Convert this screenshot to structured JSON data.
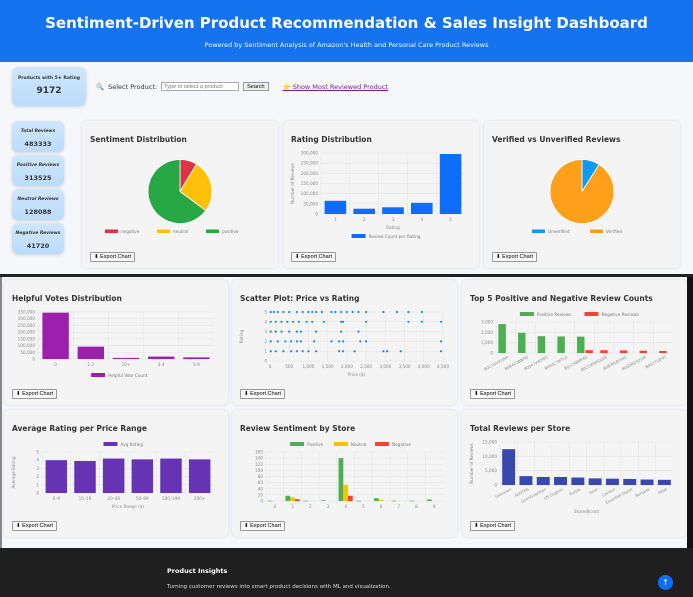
{
  "header": {
    "title": "Sentiment-Driven Product Recommendation & Sales Insight Dashboard",
    "subtitle": "Powered by Sentiment Analysis of Amazon's Health and Personal Care Product Reviews"
  },
  "top_stat": {
    "label": "Products with 5★ Rating",
    "value": "9172"
  },
  "search": {
    "label": "Select Product:",
    "placeholder": "Type or select a product",
    "button": "Search",
    "link": "Show Most Reviewed Product",
    "icon": "magnifier-icon",
    "link_icon": "star-icon"
  },
  "stats": [
    {
      "label": "Total Reviews",
      "value": "483333"
    },
    {
      "label": "Positive Reviews",
      "value": "313525"
    },
    {
      "label": "Neutral Reviews",
      "value": "128088"
    },
    {
      "label": "Negative Reviews",
      "value": "41720"
    }
  ],
  "export_label": "⬇ Export Chart",
  "footer": {
    "title": "Product Insights",
    "text": "Turning customer reviews into smart product decisions with ML and visualization.",
    "scroll_top": "↑"
  },
  "chart_data": [
    {
      "id": "sentiment",
      "type": "pie",
      "title": "Sentiment Distribution",
      "categories": [
        "negative",
        "neutral",
        "positive"
      ],
      "values": [
        41720,
        128088,
        313525
      ],
      "colors": [
        "#dc3545",
        "#ffc107",
        "#28a745"
      ],
      "legend": "bottom"
    },
    {
      "id": "rating",
      "type": "bar",
      "title": "Rating Distribution",
      "categories": [
        "1",
        "2",
        "3",
        "4",
        "5"
      ],
      "series": [
        {
          "name": "Review Count per Rating",
          "values": [
            65000,
            26000,
            33000,
            55000,
            295000
          ],
          "color": "#0d6efd"
        }
      ],
      "xlabel": "Rating",
      "ylabel": "Number of Reviews",
      "ylim": [
        0,
        300000
      ],
      "yticks": [
        0,
        50000,
        100000,
        150000,
        200000,
        250000,
        300000
      ],
      "legend": "bottom",
      "grid": true
    },
    {
      "id": "verified",
      "type": "pie",
      "title": "Verified vs Unverified Reviews",
      "categories": [
        "Unverified",
        "Verified"
      ],
      "values": [
        9,
        91
      ],
      "colors": [
        "#0d9af0",
        "#ff9f1a"
      ],
      "legend": "bottom"
    },
    {
      "id": "helpful",
      "type": "bar",
      "title": "Helpful Votes Distribution",
      "categories": [
        "0",
        "1-2",
        "10+",
        "3-4",
        "5-9"
      ],
      "series": [
        {
          "name": "Helpful Vote Count",
          "values": [
            345000,
            92000,
            8000,
            18000,
            12000
          ],
          "color": "#9c1fae"
        }
      ],
      "xlabel": "",
      "ylabel": "",
      "ylim": [
        0,
        350000
      ],
      "yticks": [
        0,
        50000,
        100000,
        150000,
        200000,
        250000,
        300000,
        350000
      ],
      "legend": "bottom",
      "grid": true
    },
    {
      "id": "scatter",
      "type": "scatter",
      "title": "Scatter Plot: Price vs Rating",
      "xlabel": "Price ($)",
      "ylabel": "Rating",
      "xlim": [
        0,
        4500
      ],
      "ylim": [
        0,
        5
      ],
      "xticks": [
        0,
        500,
        1000,
        1500,
        2000,
        2500,
        3000,
        3500,
        4000,
        4500
      ],
      "yticks": [
        0,
        1,
        2,
        3,
        4,
        5
      ],
      "color": "#1e88e5",
      "grid": true,
      "points": [
        [
          20,
          5
        ],
        [
          100,
          5
        ],
        [
          200,
          5
        ],
        [
          350,
          5
        ],
        [
          500,
          5
        ],
        [
          700,
          5
        ],
        [
          850,
          5
        ],
        [
          1000,
          5
        ],
        [
          1100,
          5
        ],
        [
          1200,
          5
        ],
        [
          1350,
          5
        ],
        [
          1600,
          5
        ],
        [
          1700,
          5
        ],
        [
          1850,
          5
        ],
        [
          2000,
          5
        ],
        [
          2150,
          5
        ],
        [
          2300,
          5
        ],
        [
          2500,
          5
        ],
        [
          2950,
          5
        ],
        [
          3300,
          5
        ],
        [
          3600,
          5
        ],
        [
          3950,
          5
        ],
        [
          20,
          4
        ],
        [
          150,
          4
        ],
        [
          300,
          4
        ],
        [
          450,
          4
        ],
        [
          600,
          4
        ],
        [
          750,
          4
        ],
        [
          950,
          4
        ],
        [
          1100,
          4
        ],
        [
          1400,
          4
        ],
        [
          1850,
          4
        ],
        [
          1900,
          4
        ],
        [
          2500,
          4
        ],
        [
          3600,
          4
        ],
        [
          3950,
          4
        ],
        [
          4450,
          4
        ],
        [
          20,
          3
        ],
        [
          150,
          3
        ],
        [
          300,
          3
        ],
        [
          500,
          3
        ],
        [
          700,
          3
        ],
        [
          800,
          3
        ],
        [
          1200,
          3
        ],
        [
          1850,
          3
        ],
        [
          2300,
          3
        ],
        [
          20,
          2
        ],
        [
          200,
          2
        ],
        [
          400,
          2
        ],
        [
          550,
          2
        ],
        [
          700,
          2
        ],
        [
          800,
          2
        ],
        [
          1150,
          2
        ],
        [
          1600,
          2
        ],
        [
          1800,
          2
        ],
        [
          1900,
          2
        ],
        [
          2350,
          2
        ],
        [
          2500,
          2
        ],
        [
          4450,
          2
        ],
        [
          20,
          1
        ],
        [
          150,
          1
        ],
        [
          350,
          1
        ],
        [
          550,
          1
        ],
        [
          700,
          1
        ],
        [
          850,
          1
        ],
        [
          1000,
          1
        ],
        [
          1200,
          1
        ],
        [
          1800,
          1
        ],
        [
          1900,
          1
        ],
        [
          2200,
          1
        ],
        [
          2950,
          1
        ],
        [
          3050,
          1
        ],
        [
          3400,
          1
        ],
        [
          4450,
          1
        ]
      ]
    },
    {
      "id": "top5",
      "type": "bar",
      "title": "Top 5 Positive and Negative Review Counts",
      "categories": [
        "B0C1HHXG0M",
        "B0B4Z2BBFW",
        "B0047VWY6O",
        "B004C7MTLA",
        "B01CK8MP40",
        "B0CCW9POLEK",
        "B0B3KLB19IC",
        "B00DRDX2UM",
        "B0077L8YFI"
      ],
      "series": [
        {
          "name": "Positive Reviews",
          "values": [
            2800,
            1950,
            1630,
            1600,
            1580,
            0,
            0,
            0,
            0
          ],
          "color": "#4caf50"
        },
        {
          "name": "Negative Reviews",
          "values": [
            0,
            0,
            0,
            0,
            270,
            270,
            250,
            220,
            200
          ],
          "color": "#f44336"
        }
      ],
      "ylim": [
        0,
        3000
      ],
      "yticks": [
        0,
        1000,
        2000,
        3000
      ],
      "legend": "top",
      "grid": true
    },
    {
      "id": "avgprice",
      "type": "bar",
      "title": "Average Rating per Price Range",
      "categories": [
        "0–9",
        "10–19",
        "20–49",
        "50–99",
        "100–199",
        "200+"
      ],
      "series": [
        {
          "name": "Avg Rating",
          "values": [
            4.0,
            3.9,
            4.2,
            4.1,
            4.2,
            4.1
          ],
          "color": "#6633b5"
        }
      ],
      "xlabel": "Price Range ($)",
      "ylabel": "Average Rating",
      "ylim": [
        0,
        5
      ],
      "yticks": [
        0,
        1,
        2,
        3,
        4,
        5
      ],
      "legend": "top",
      "grid": true
    },
    {
      "id": "store_sent",
      "type": "bar",
      "title": "Review Sentiment by Store",
      "categories": [
        "0",
        "1",
        "2",
        "3",
        "4",
        "5",
        "6",
        "7",
        "8",
        "9"
      ],
      "series": [
        {
          "name": "Positive",
          "values": [
            1,
            17,
            1,
            2,
            140,
            1,
            9,
            1,
            1,
            5
          ],
          "color": "#4caf50"
        },
        {
          "name": "Neutral",
          "values": [
            0,
            12,
            0,
            0,
            53,
            0,
            4,
            0,
            0,
            0
          ],
          "color": "#ffc107"
        },
        {
          "name": "Negative",
          "values": [
            0,
            6,
            0,
            0,
            17,
            0,
            0,
            0,
            0,
            0
          ],
          "color": "#f44336"
        }
      ],
      "ylim": [
        0,
        160
      ],
      "yticks": [
        0,
        20,
        40,
        60,
        80,
        100,
        120,
        140,
        160
      ],
      "legend": "top",
      "grid": true
    },
    {
      "id": "store_total",
      "type": "bar",
      "title": "Total Reviews per Store",
      "categories": [
        "Unknown",
        "ASUTRA",
        "GermGuardian",
        "US Organic",
        "Purple",
        "Avon",
        "Carlson",
        "Essential Depot",
        "Nerbase",
        "Fitbit"
      ],
      "series": [
        {
          "name": "",
          "values": [
            12500,
            3100,
            2800,
            2800,
            2600,
            2300,
            2200,
            2100,
            1900,
            1800
          ],
          "color": "#3949ab"
        }
      ],
      "xlabel": "Store/Brand",
      "ylabel": "Number of Reviews",
      "ylim": [
        0,
        15000
      ],
      "yticks": [
        0,
        5000,
        10000,
        15000
      ],
      "legend": "none",
      "grid": true
    }
  ]
}
